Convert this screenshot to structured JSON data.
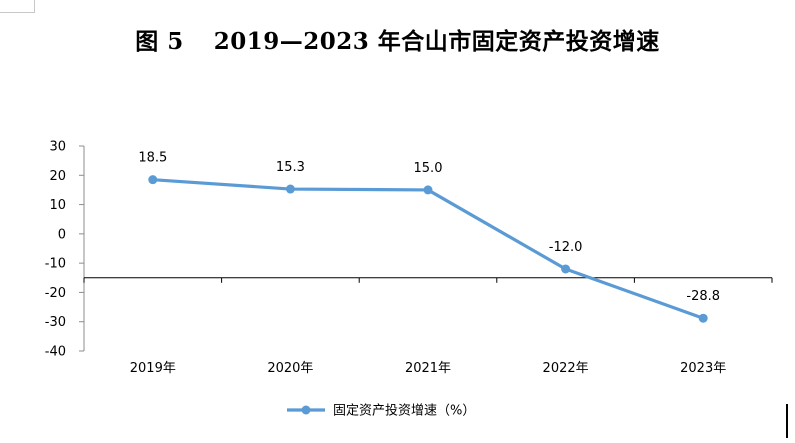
{
  "title": {
    "prefix": "图 5",
    "text": "2019—2023 年合山市固定资产投资增速"
  },
  "chart_data": {
    "type": "line",
    "categories": [
      "2019年",
      "2020年",
      "2021年",
      "2022年",
      "2023年"
    ],
    "series": [
      {
        "name": "固定资产投资增速（%）",
        "values": [
          18.5,
          15.3,
          15.0,
          -12.0,
          -28.8
        ],
        "color": "#5b9bd5"
      }
    ],
    "data_labels": [
      "18.5",
      "15.3",
      "15.0",
      "-12.0",
      "-28.8"
    ],
    "y_ticks": [
      "30",
      "20",
      "10",
      "0",
      "-10",
      "-20",
      "-30",
      "-40"
    ],
    "ylim": [
      -40,
      30
    ],
    "category_axis_at": -15,
    "grid": false,
    "legend_position": "bottom",
    "title": "",
    "xlabel": "",
    "ylabel": ""
  }
}
